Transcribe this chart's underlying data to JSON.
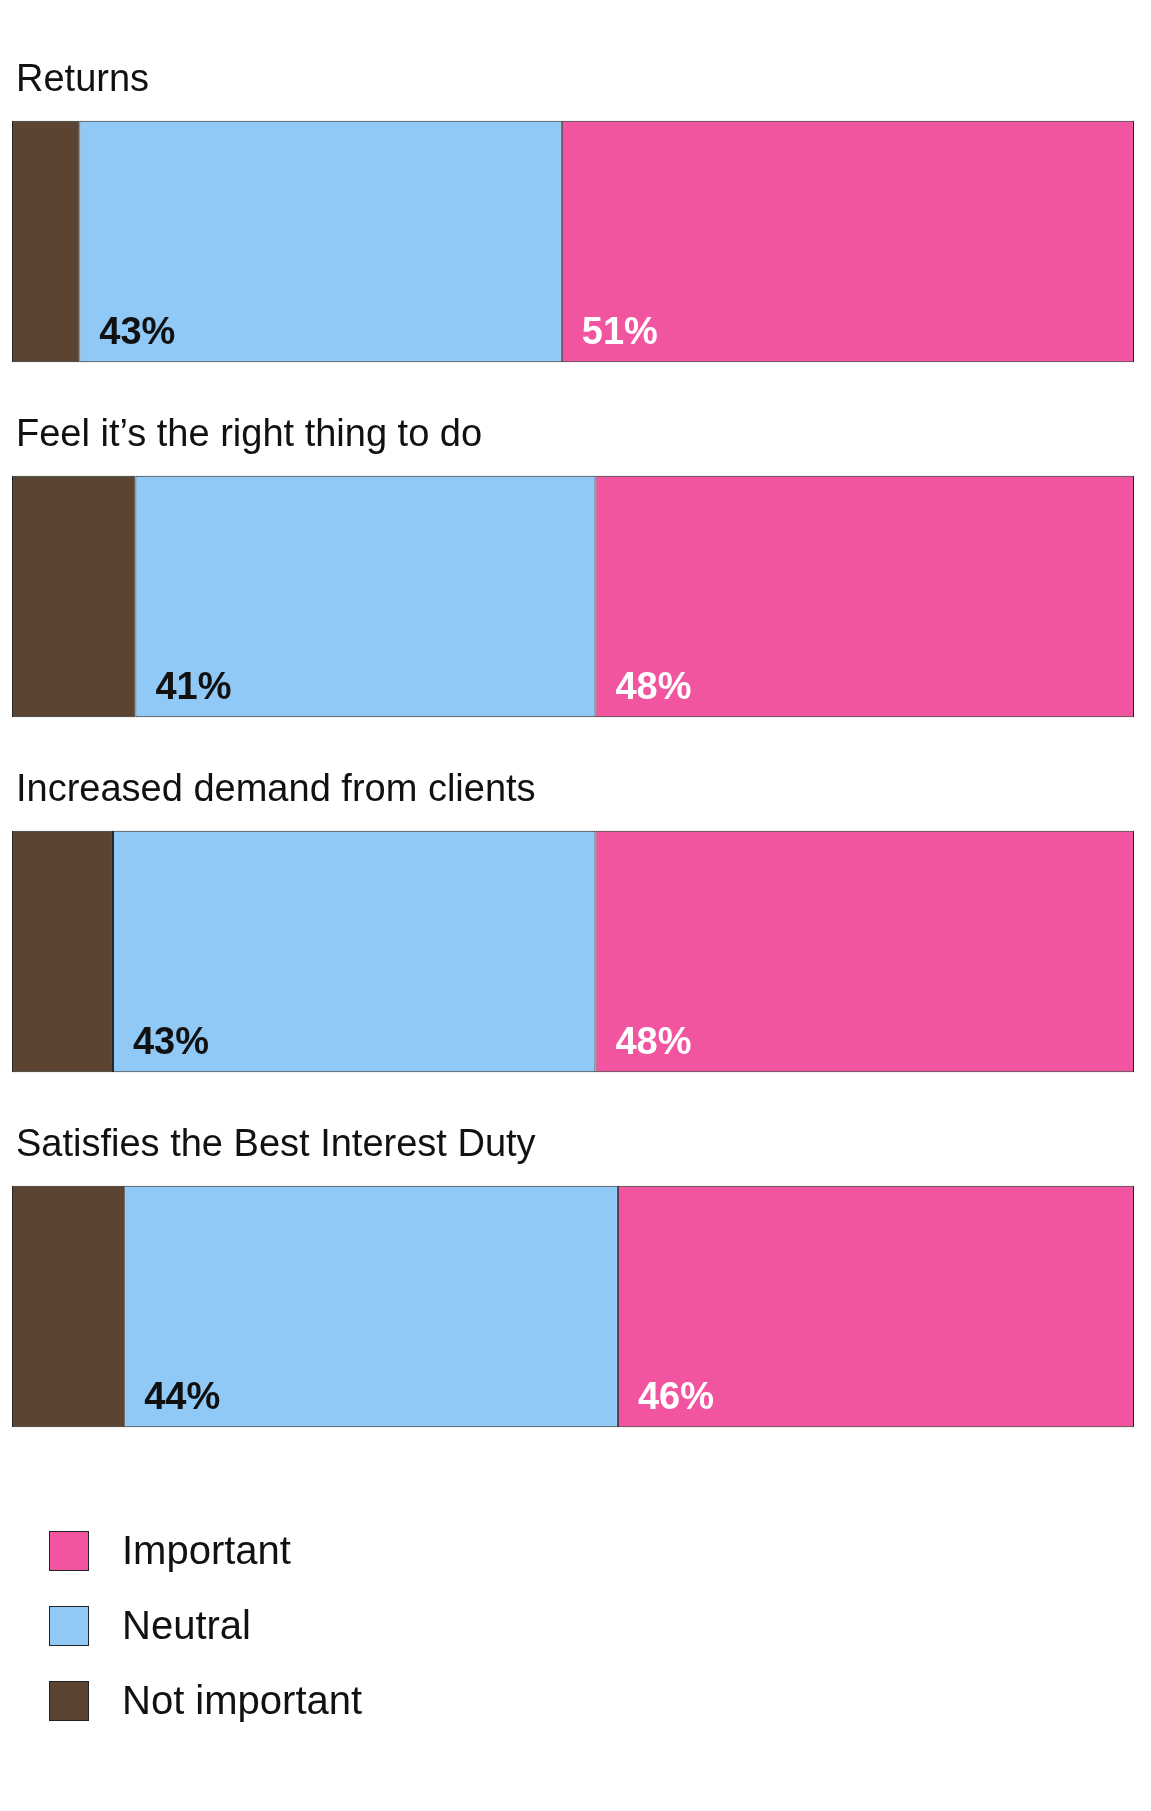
{
  "chart_data": {
    "type": "bar",
    "orientation": "horizontal",
    "stacked": true,
    "categories": [
      "Returns",
      "Feel it’s the right thing to do",
      "Increased demand from clients",
      "Satisfies the Best Interest Duty"
    ],
    "series": [
      {
        "name": "Not important",
        "color": "#5c4433",
        "values": [
          6,
          11,
          9,
          10
        ]
      },
      {
        "name": "Neutral",
        "color": "#90c8f6",
        "values": [
          43,
          41,
          43,
          44
        ],
        "value_labels": [
          "43%",
          "41%",
          "43%",
          "44%"
        ]
      },
      {
        "name": "Important",
        "color": "#f255a0",
        "values": [
          51,
          48,
          48,
          46
        ],
        "value_labels": [
          "51%",
          "48%",
          "48%",
          "46%"
        ]
      }
    ],
    "tick_labels": false,
    "legend": "bottom left"
  }
}
